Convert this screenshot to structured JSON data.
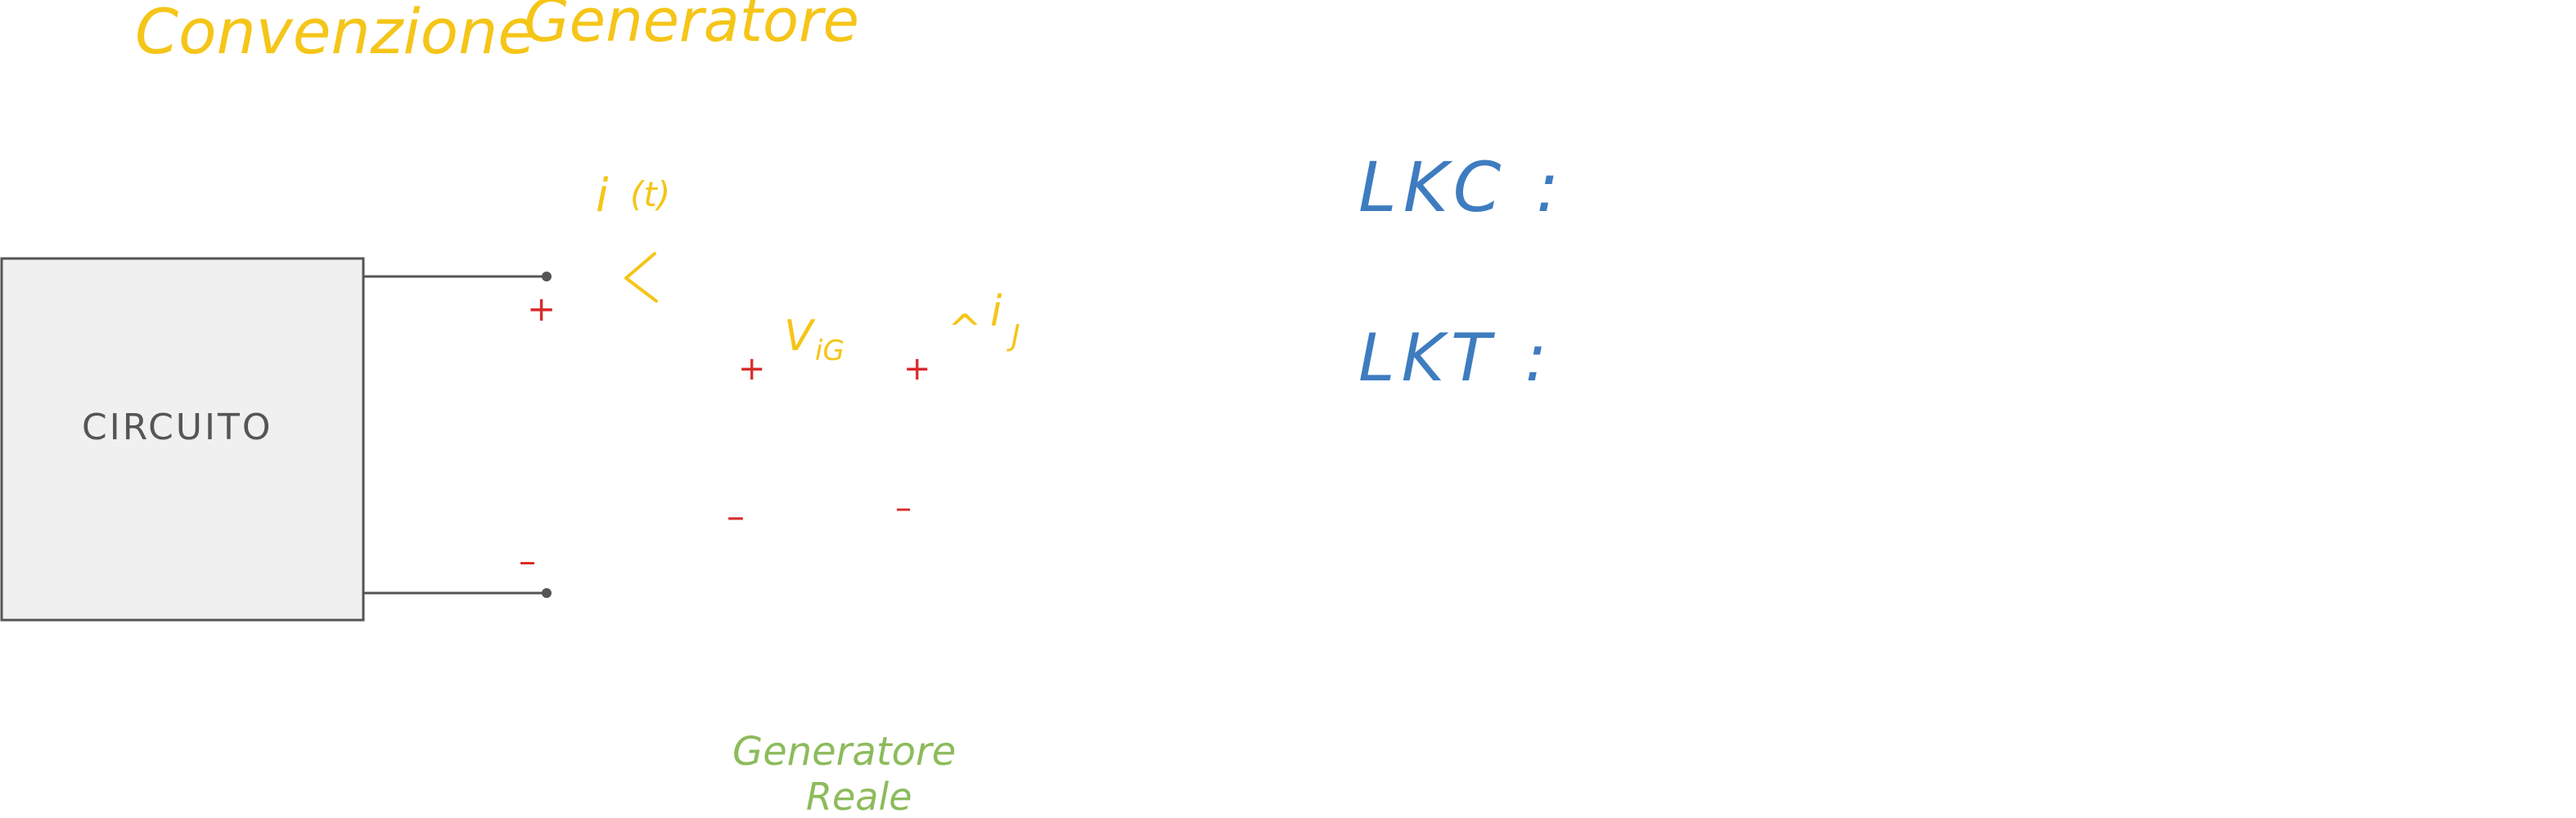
{
  "title": {
    "part1": "Convenzione",
    "part2": "Generatore"
  },
  "circuit": {
    "label": "CIRCUITO"
  },
  "current": {
    "label_var": "i",
    "label_arg": "(t)"
  },
  "signs": {
    "plus": "+",
    "minus": "–"
  },
  "voltage": {
    "label": "V",
    "subscript": "iG"
  },
  "current_j": {
    "caret": "^",
    "label": "i",
    "subscript": "J"
  },
  "real_generator": {
    "line1": "Generatore",
    "line2": "Reale"
  },
  "laws": {
    "lkc": "LKC :",
    "lkt": "LKT :"
  },
  "colors": {
    "yellow": "#F5C518",
    "red": "#D92B2B",
    "blue": "#3E7CC0",
    "green": "#8DBB5C",
    "gray": "#555555",
    "box_fill": "#F0F0F0"
  }
}
